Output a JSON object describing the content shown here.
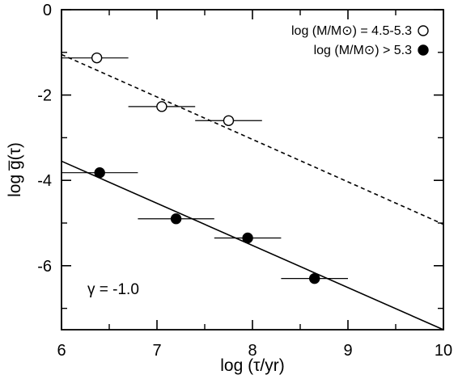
{
  "chart_data": {
    "type": "scatter",
    "title": "",
    "xlabel": "log (τ/yr)",
    "ylabel": "log g̅(τ)",
    "xlim": [
      6,
      10
    ],
    "ylim": [
      -7.5,
      0
    ],
    "xticks": [
      6,
      7,
      8,
      9,
      10
    ],
    "yticks": [
      0,
      -2,
      -4,
      -6
    ],
    "grid": false,
    "legend_position": "top-right",
    "annotation": "γ = -1.0",
    "series": [
      {
        "name": "log (M/M⊙) = 4.5-5.3",
        "marker": "open-circle",
        "points": [
          {
            "x": 6.37,
            "xerr": [
              6.0,
              6.7
            ],
            "y": -1.13
          },
          {
            "x": 7.05,
            "xerr": [
              6.7,
              7.4
            ],
            "y": -2.27
          },
          {
            "x": 7.75,
            "xerr": [
              7.4,
              8.1
            ],
            "y": -2.6
          }
        ],
        "fit": {
          "x": [
            6.0,
            10.0
          ],
          "y": [
            -1.05,
            -5.03
          ],
          "style": "dashed"
        }
      },
      {
        "name": "log (M/M⊙) > 5.3",
        "marker": "filled-circle",
        "points": [
          {
            "x": 6.4,
            "xerr": [
              6.0,
              6.8
            ],
            "y": -3.82
          },
          {
            "x": 7.2,
            "xerr": [
              6.8,
              7.6
            ],
            "y": -4.9
          },
          {
            "x": 7.95,
            "xerr": [
              7.6,
              8.3
            ],
            "y": -5.35
          },
          {
            "x": 8.65,
            "xerr": [
              8.3,
              9.0
            ],
            "y": -6.3
          }
        ],
        "fit": {
          "x": [
            6.0,
            10.0
          ],
          "y": [
            -3.55,
            -7.5
          ],
          "style": "solid"
        }
      }
    ],
    "colors": {
      "axes": "#000000",
      "marker": "#000000",
      "background": "#ffffff"
    }
  }
}
